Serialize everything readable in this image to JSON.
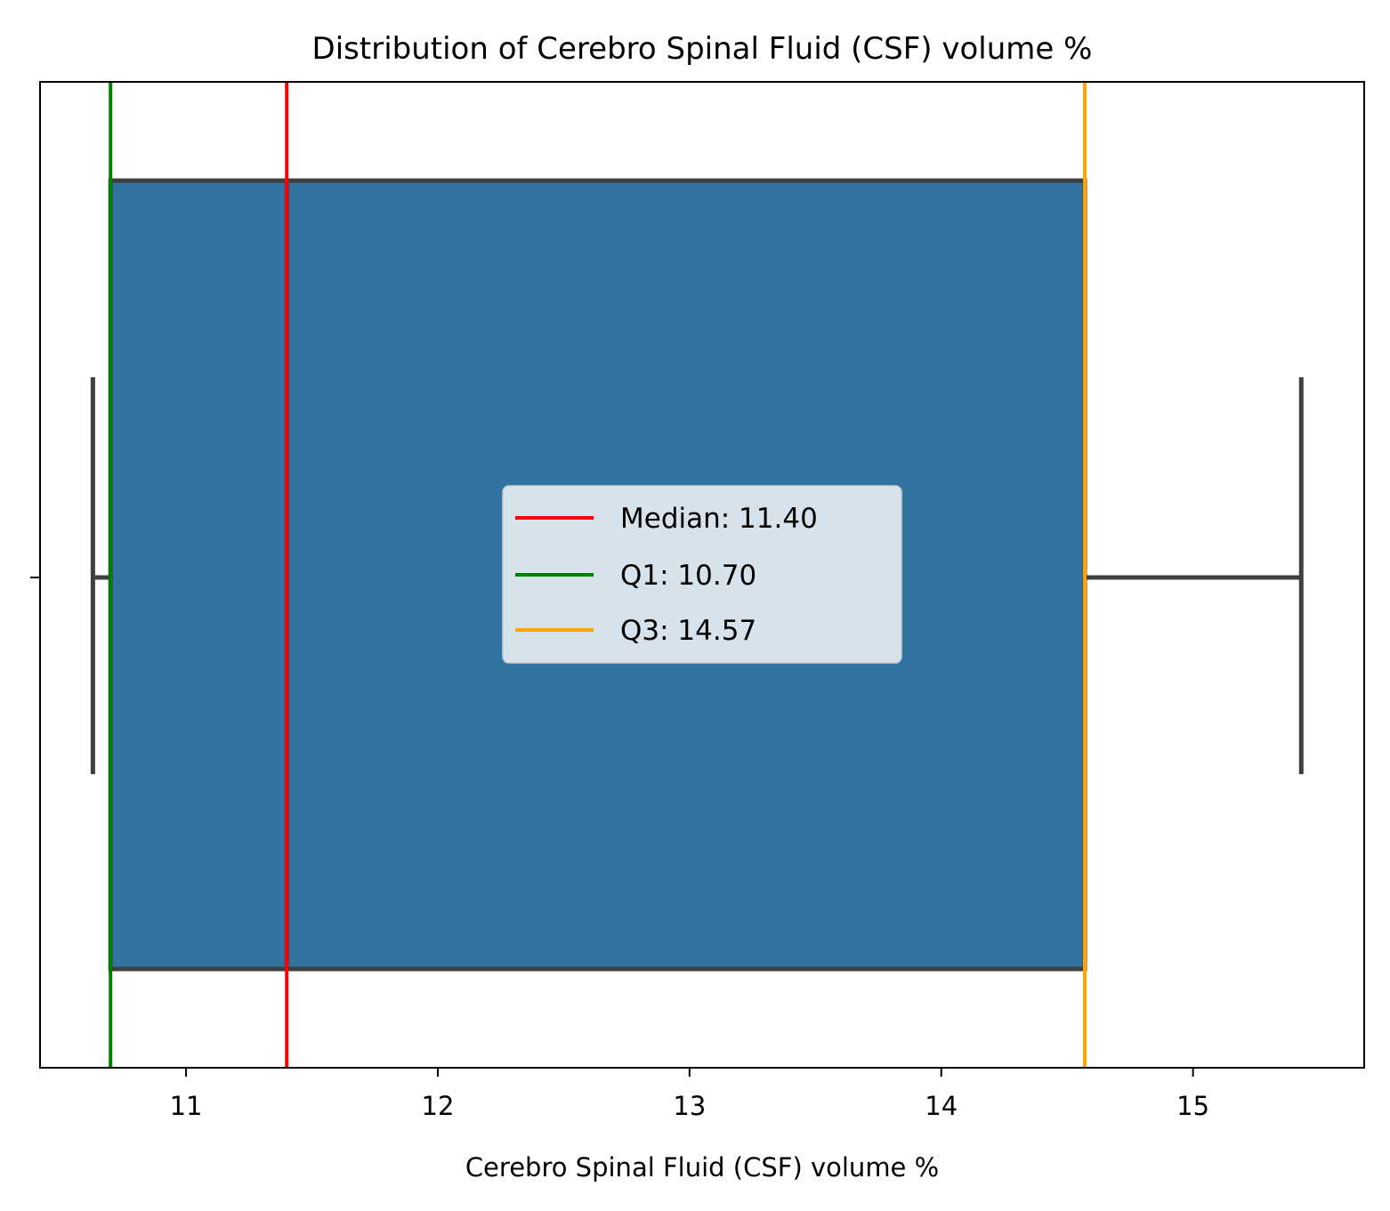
{
  "chart_data": {
    "type": "box",
    "orientation": "horizontal",
    "title": "Distribution of Cerebro Spinal Fluid (CSF) volume %",
    "xlabel": "Cerebro Spinal Fluid (CSF) volume %",
    "ylabel": "",
    "xlim": [
      10.42,
      15.68
    ],
    "xticks": [
      "11",
      "12",
      "13",
      "14",
      "15"
    ],
    "box": {
      "whisker_low": 10.63,
      "q1": 10.7,
      "median": 11.4,
      "q3": 14.57,
      "whisker_high": 15.43,
      "fill_color": "#3274a1",
      "edge_color": "#3f3f3f"
    },
    "reference_lines": [
      {
        "label": "Median: 11.40",
        "value": 11.4,
        "color": "#ff0000"
      },
      {
        "label": "Q1: 10.70",
        "value": 10.7,
        "color": "#008000"
      },
      {
        "label": "Q3: 14.57",
        "value": 14.57,
        "color": "#ffa500"
      }
    ],
    "legend": {
      "placement": "center"
    },
    "grid": false
  }
}
